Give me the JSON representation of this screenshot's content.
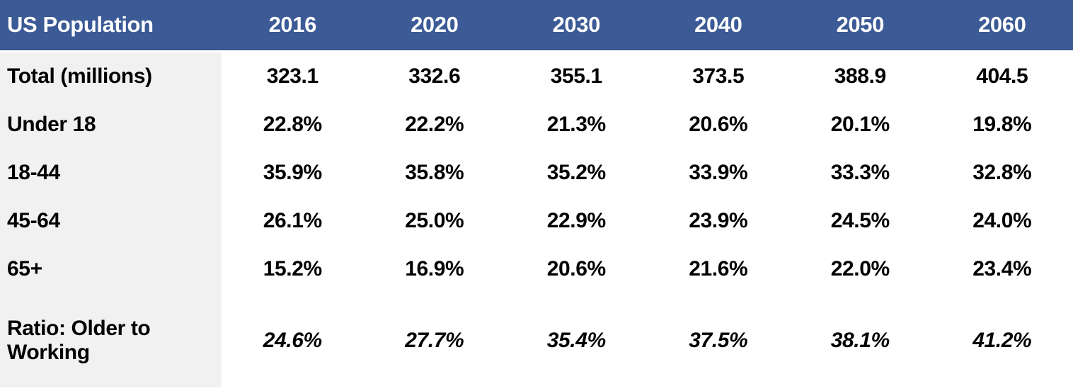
{
  "table": {
    "header_label": "US Population",
    "columns": [
      "2016",
      "2020",
      "2030",
      "2040",
      "2050",
      "2060"
    ],
    "rows": [
      {
        "label": "Total (millions)",
        "values": [
          "323.1",
          "332.6",
          "355.1",
          "373.5",
          "388.9",
          "404.5"
        ]
      },
      {
        "label": "Under 18",
        "values": [
          "22.8%",
          "22.2%",
          "21.3%",
          "20.6%",
          "20.1%",
          "19.8%"
        ]
      },
      {
        "label": "18-44",
        "values": [
          "35.9%",
          "35.8%",
          "35.2%",
          "33.9%",
          "33.3%",
          "32.8%"
        ]
      },
      {
        "label": "45-64",
        "values": [
          "26.1%",
          "25.0%",
          "22.9%",
          "23.9%",
          "24.5%",
          "24.0%"
        ]
      },
      {
        "label": "65+",
        "values": [
          "15.2%",
          "16.9%",
          "20.6%",
          "21.6%",
          "22.0%",
          "23.4%"
        ]
      },
      {
        "label": "Ratio: Older to Working",
        "values": [
          "24.6%",
          "27.7%",
          "35.4%",
          "37.5%",
          "38.1%",
          "41.2%"
        ]
      }
    ],
    "colors": {
      "header_bg": "#3B5A96",
      "header_text": "#FFFFFF",
      "label_column_bg": "#F1F1F2",
      "body_text": "#000000"
    }
  },
  "chart_data": {
    "type": "table",
    "title": "US Population",
    "categories": [
      "2016",
      "2020",
      "2030",
      "2040",
      "2050",
      "2060"
    ],
    "series": [
      {
        "name": "Total (millions)",
        "unit": "millions",
        "values": [
          323.1,
          332.6,
          355.1,
          373.5,
          388.9,
          404.5
        ]
      },
      {
        "name": "Under 18",
        "unit": "%",
        "values": [
          22.8,
          22.2,
          21.3,
          20.6,
          20.1,
          19.8
        ]
      },
      {
        "name": "18-44",
        "unit": "%",
        "values": [
          35.9,
          35.8,
          35.2,
          33.9,
          33.3,
          32.8
        ]
      },
      {
        "name": "45-64",
        "unit": "%",
        "values": [
          26.1,
          25.0,
          22.9,
          23.9,
          24.5,
          24.0
        ]
      },
      {
        "name": "65+",
        "unit": "%",
        "values": [
          15.2,
          16.9,
          20.6,
          21.6,
          22.0,
          23.4
        ]
      },
      {
        "name": "Ratio: Older to Working",
        "unit": "%",
        "values": [
          24.6,
          27.7,
          35.4,
          37.5,
          38.1,
          41.2
        ],
        "italic": true
      }
    ],
    "layout": {
      "header_row": true,
      "label_column": true,
      "grid": false
    }
  }
}
